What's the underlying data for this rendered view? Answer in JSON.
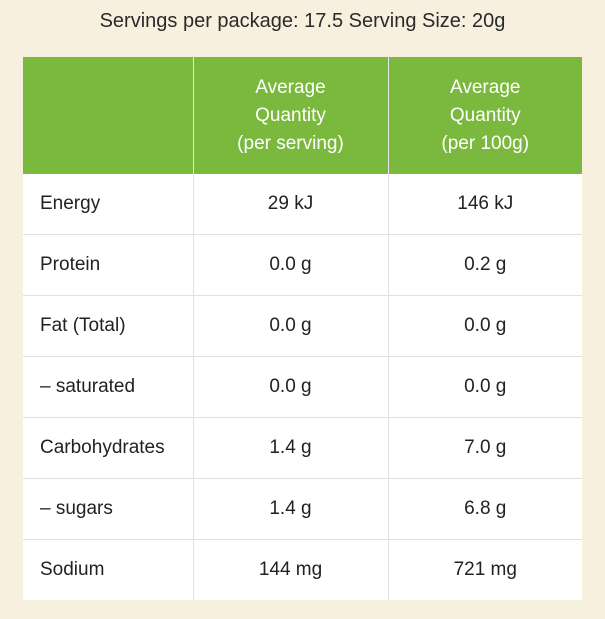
{
  "serving_info": "Servings per package: 17.5 Serving Size: 20g",
  "header": {
    "col1": "",
    "col2": [
      "Average",
      "Quantity",
      "(per serving)"
    ],
    "col3": [
      "Average",
      "Quantity",
      "(per 100g)"
    ]
  },
  "header_color": "#7bb93e",
  "rows": [
    {
      "nutrient": "Energy",
      "per_serving": "29 kJ",
      "per_100g": "146 kJ"
    },
    {
      "nutrient": "Protein",
      "per_serving": "0.0 g",
      "per_100g": "0.2 g"
    },
    {
      "nutrient": "Fat (Total)",
      "per_serving": "0.0 g",
      "per_100g": "0.0 g"
    },
    {
      "nutrient": "– saturated",
      "per_serving": "0.0 g",
      "per_100g": "0.0 g"
    },
    {
      "nutrient": "Carbohydrates",
      "per_serving": "1.4 g",
      "per_100g": "7.0 g"
    },
    {
      "nutrient": "– sugars",
      "per_serving": "1.4 g",
      "per_100g": "6.8 g"
    },
    {
      "nutrient": "Sodium",
      "per_serving": "144 mg",
      "per_100g": "721 mg"
    }
  ]
}
